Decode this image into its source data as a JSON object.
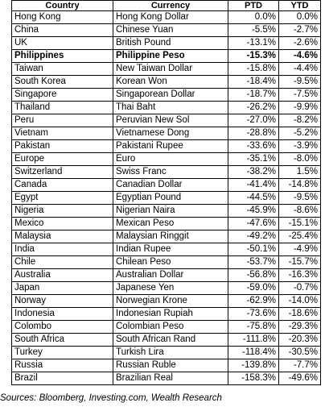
{
  "table": {
    "headers": {
      "country": "Country",
      "currency": "Currency",
      "ptd": "PTD",
      "ytd": "YTD"
    },
    "rows": [
      {
        "country": "Hong Kong",
        "currency": "Hong Kong  Dollar",
        "ptd": "0.0%",
        "ytd": "0.0%",
        "bold": false
      },
      {
        "country": "China",
        "currency": "Chinese Yuan",
        "ptd": "-5.5%",
        "ytd": "-2.7%",
        "bold": false
      },
      {
        "country": "UK",
        "currency": "British Pound",
        "ptd": "-13.1%",
        "ytd": "-2.6%",
        "bold": false
      },
      {
        "country": "Philippines",
        "currency": "Philippine Peso",
        "ptd": "-15.3%",
        "ytd": "-4.6%",
        "bold": true
      },
      {
        "country": "Taiwan",
        "currency": "New Taiwan Dollar",
        "ptd": "-15.8%",
        "ytd": "-4.4%",
        "bold": false
      },
      {
        "country": "South Korea",
        "currency": "Korean Won",
        "ptd": "-18.4%",
        "ytd": "-9.5%",
        "bold": false
      },
      {
        "country": "Singapore",
        "currency": "Singaporean Dollar",
        "ptd": "-18.7%",
        "ytd": "-7.5%",
        "bold": false
      },
      {
        "country": "Thailand",
        "currency": "Thai Baht",
        "ptd": "-26.2%",
        "ytd": "-9.9%",
        "bold": false
      },
      {
        "country": "Peru",
        "currency": "Peruvian New Sol",
        "ptd": "-27.0%",
        "ytd": "-8.2%",
        "bold": false
      },
      {
        "country": "Vietnam",
        "currency": "Vietnamese Dong",
        "ptd": "-28.8%",
        "ytd": "-5.2%",
        "bold": false
      },
      {
        "country": "Pakistan",
        "currency": "Pakistani Rupee",
        "ptd": "-33.6%",
        "ytd": "-3.9%",
        "bold": false
      },
      {
        "country": "Europe",
        "currency": "Euro",
        "ptd": "-35.1%",
        "ytd": "-8.0%",
        "bold": false
      },
      {
        "country": "Switzerland",
        "currency": "Swiss Franc",
        "ptd": "-38.2%",
        "ytd": "1.5%",
        "bold": false
      },
      {
        "country": "Canada",
        "currency": "Canadian Dollar",
        "ptd": "-41.4%",
        "ytd": "-14.8%",
        "bold": false
      },
      {
        "country": "Egypt",
        "currency": "Egyptian Pound",
        "ptd": "-44.5%",
        "ytd": "-9.5%",
        "bold": false
      },
      {
        "country": "Nigeria",
        "currency": "Nigerian Naira",
        "ptd": "-45.9%",
        "ytd": "-8.6%",
        "bold": false
      },
      {
        "country": "Mexico",
        "currency": "Mexican Peso",
        "ptd": "-47.6%",
        "ytd": "-15.1%",
        "bold": false
      },
      {
        "country": "Malaysia",
        "currency": "Malaysian Ringgit",
        "ptd": "-49.2%",
        "ytd": "-25.4%",
        "bold": false
      },
      {
        "country": "India",
        "currency": "Indian Rupee",
        "ptd": "-50.1%",
        "ytd": "-4.9%",
        "bold": false
      },
      {
        "country": "Chile",
        "currency": "Chilean Peso",
        "ptd": "-53.7%",
        "ytd": "-15.7%",
        "bold": false
      },
      {
        "country": "Australia",
        "currency": "Australian Dollar",
        "ptd": "-56.8%",
        "ytd": "-16.3%",
        "bold": false
      },
      {
        "country": "Japan",
        "currency": "Japanese Yen",
        "ptd": "-59.0%",
        "ytd": "-0.7%",
        "bold": false
      },
      {
        "country": "Norway",
        "currency": "Norwegian Krone",
        "ptd": "-62.9%",
        "ytd": "-14.0%",
        "bold": false
      },
      {
        "country": "Indonesia",
        "currency": "Indonesian Rupiah",
        "ptd": "-73.6%",
        "ytd": "-18.6%",
        "bold": false
      },
      {
        "country": "Colombo",
        "currency": "Colombian Peso",
        "ptd": "-75.8%",
        "ytd": "-29.3%",
        "bold": false
      },
      {
        "country": "South Africa",
        "currency": "South African Rand",
        "ptd": "-111.8%",
        "ytd": "-20.3%",
        "bold": false
      },
      {
        "country": "Turkey",
        "currency": "Turkish Lira",
        "ptd": "-118.4%",
        "ytd": "-30.5%",
        "bold": false
      },
      {
        "country": "Russia",
        "currency": "Russian Ruble",
        "ptd": "-139.8%",
        "ytd": "-7.7%",
        "bold": false
      },
      {
        "country": "Brazil",
        "currency": "Brazilian Real",
        "ptd": "-158.3%",
        "ytd": "-49.6%",
        "bold": false
      }
    ]
  },
  "source_note": "Sources: Bloomberg, Investing.com, Wealth Research"
}
